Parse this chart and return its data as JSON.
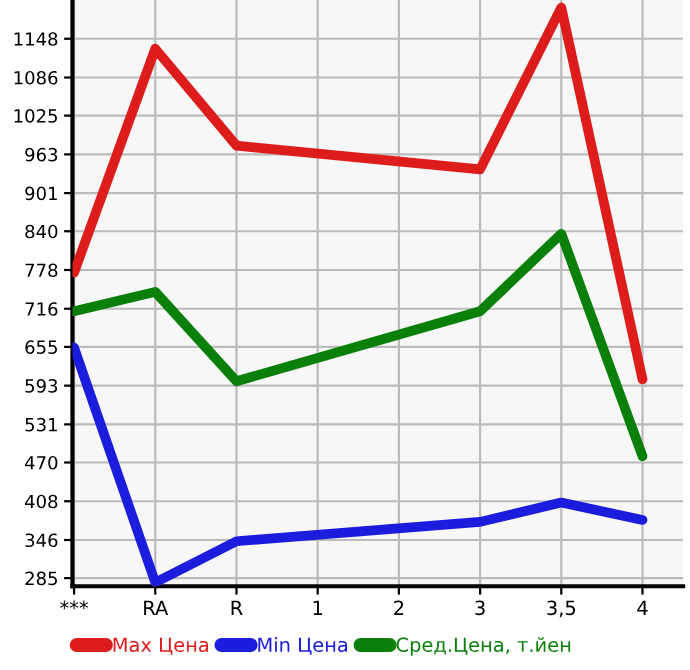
{
  "chart_data": {
    "type": "line",
    "categories": [
      "***",
      "RA",
      "R",
      "1",
      "2",
      "3",
      "3,5",
      "4"
    ],
    "series": [
      {
        "name": "Max Цена",
        "color": "#dd1c1c",
        "values": [
          774,
          1132,
          977,
          null,
          null,
          939,
          1198,
          603
        ]
      },
      {
        "name": "Min Цена",
        "color": "#1c1cdd",
        "values": [
          654,
          278,
          344,
          null,
          null,
          375,
          406,
          378
        ]
      },
      {
        "name": "Сред.Цена, т.йен",
        "color": "#0a800a",
        "values": [
          712,
          743,
          600,
          null,
          null,
          712,
          836,
          480
        ]
      }
    ],
    "ylim": [
      272,
      1210
    ],
    "yticks": [
      285,
      346,
      408,
      470,
      531,
      593,
      655,
      716,
      778,
      840,
      901,
      963,
      1025,
      1086,
      1148
    ],
    "grid": true,
    "legend": "bottom",
    "marker": "none",
    "line_style": "solid"
  }
}
